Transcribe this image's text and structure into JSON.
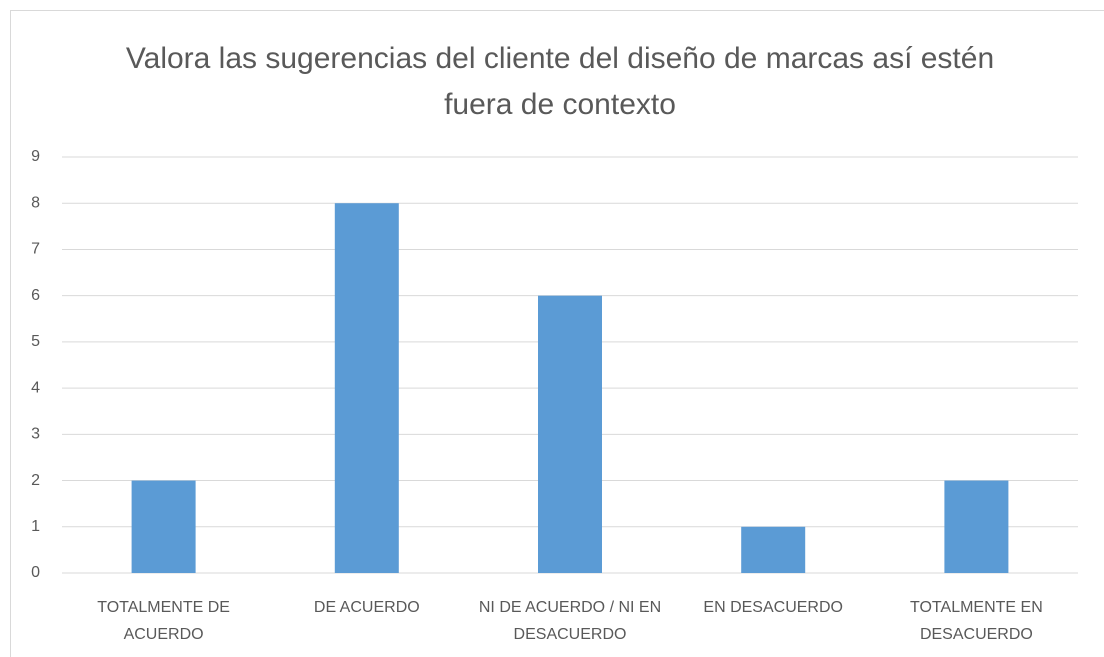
{
  "chart_data": {
    "type": "bar",
    "title": "Valora las sugerencias del cliente del diseño de marcas así estén fuera de contexto",
    "categories": [
      "TOTALMENTE DE ACUERDO",
      "DE ACUERDO",
      "NI DE ACUERDO / NI EN DESACUERDO",
      "EN DESACUERDO",
      "TOTALMENTE EN DESACUERDO"
    ],
    "values": [
      2,
      8,
      6,
      1,
      2
    ],
    "color": "#5b9bd5",
    "ylim": [
      0,
      9
    ],
    "yticks": [
      0,
      1,
      2,
      3,
      4,
      5,
      6,
      7,
      8,
      9
    ],
    "grid": true
  }
}
